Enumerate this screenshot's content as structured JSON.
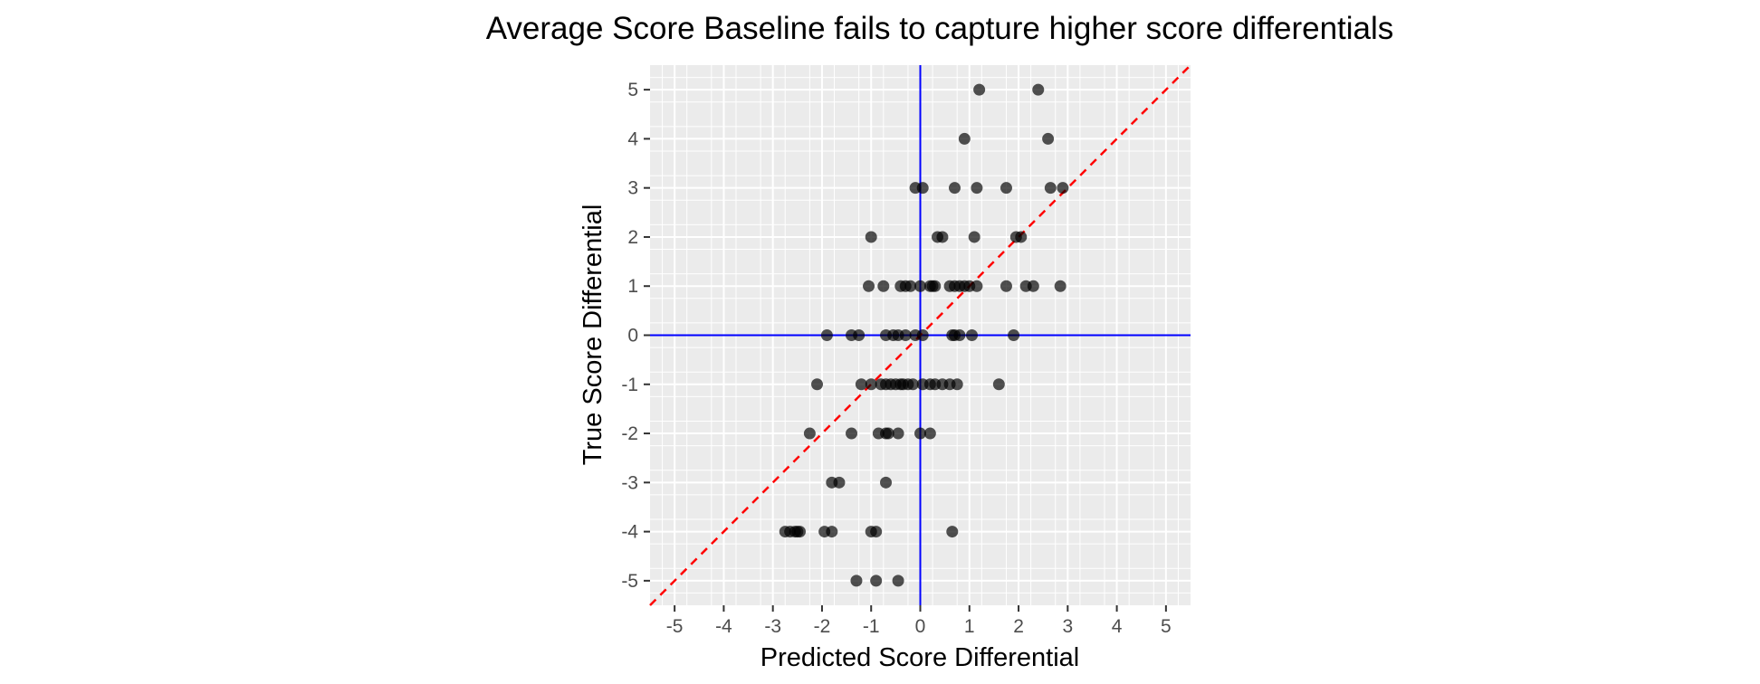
{
  "chart_data": {
    "type": "scatter",
    "title": "Average Score Baseline fails to capture higher score differentials",
    "xlabel": "Predicted Score Differential",
    "ylabel": "True Score Differential",
    "xlim": [
      -5.5,
      5.5
    ],
    "ylim": [
      -5.5,
      5.5
    ],
    "x_ticks": [
      -5,
      -4,
      -3,
      -2,
      -1,
      0,
      1,
      2,
      3,
      4,
      5
    ],
    "y_ticks": [
      -5,
      -4,
      -3,
      -2,
      -1,
      0,
      1,
      2,
      3,
      4,
      5
    ],
    "x_tick_labels": [
      "-5",
      "-4",
      "-3",
      "-2",
      "-1",
      "0",
      "1",
      "2",
      "3",
      "4",
      "5"
    ],
    "y_tick_labels": [
      "-5",
      "-4",
      "-3",
      "-2",
      "-1",
      "0",
      "1",
      "2",
      "3",
      "4",
      "5"
    ],
    "grid": true,
    "reference_lines": [
      {
        "kind": "vertical",
        "x": 0,
        "color": "#0000ff",
        "style": "solid"
      },
      {
        "kind": "horizontal",
        "y": 0,
        "color": "#0000ff",
        "style": "solid"
      },
      {
        "kind": "diagonal",
        "slope": 1,
        "intercept": 0,
        "color": "#ff0000",
        "style": "dashed"
      }
    ],
    "colors": {
      "panel_background": "#ebebeb",
      "grid": "#ffffff",
      "points": "#000000",
      "tick_text": "#4d4d4d"
    },
    "points": [
      {
        "x": 1.2,
        "y": 5
      },
      {
        "x": 2.4,
        "y": 5
      },
      {
        "x": 0.9,
        "y": 4
      },
      {
        "x": 2.6,
        "y": 4
      },
      {
        "x": -0.1,
        "y": 3
      },
      {
        "x": 0.05,
        "y": 3
      },
      {
        "x": 0.7,
        "y": 3
      },
      {
        "x": 1.15,
        "y": 3
      },
      {
        "x": 1.75,
        "y": 3
      },
      {
        "x": 2.65,
        "y": 3
      },
      {
        "x": 2.9,
        "y": 3
      },
      {
        "x": -1.0,
        "y": 2
      },
      {
        "x": 0.35,
        "y": 2
      },
      {
        "x": 0.45,
        "y": 2
      },
      {
        "x": 1.1,
        "y": 2
      },
      {
        "x": 1.95,
        "y": 2
      },
      {
        "x": 2.05,
        "y": 2
      },
      {
        "x": -1.05,
        "y": 1
      },
      {
        "x": -0.75,
        "y": 1
      },
      {
        "x": -0.4,
        "y": 1
      },
      {
        "x": -0.3,
        "y": 1
      },
      {
        "x": -0.2,
        "y": 1
      },
      {
        "x": 0.0,
        "y": 1
      },
      {
        "x": 0.2,
        "y": 1
      },
      {
        "x": 0.25,
        "y": 1
      },
      {
        "x": 0.3,
        "y": 1
      },
      {
        "x": 0.6,
        "y": 1
      },
      {
        "x": 0.7,
        "y": 1
      },
      {
        "x": 0.8,
        "y": 1
      },
      {
        "x": 0.9,
        "y": 1
      },
      {
        "x": 1.0,
        "y": 1
      },
      {
        "x": 1.15,
        "y": 1
      },
      {
        "x": 1.75,
        "y": 1
      },
      {
        "x": 2.15,
        "y": 1
      },
      {
        "x": 2.3,
        "y": 1
      },
      {
        "x": 2.85,
        "y": 1
      },
      {
        "x": -1.9,
        "y": 0
      },
      {
        "x": -1.4,
        "y": 0
      },
      {
        "x": -1.25,
        "y": 0
      },
      {
        "x": -0.7,
        "y": 0
      },
      {
        "x": -0.55,
        "y": 0
      },
      {
        "x": -0.45,
        "y": 0
      },
      {
        "x": -0.3,
        "y": 0
      },
      {
        "x": -0.1,
        "y": 0
      },
      {
        "x": 0.05,
        "y": 0
      },
      {
        "x": 0.65,
        "y": 0
      },
      {
        "x": 0.7,
        "y": 0
      },
      {
        "x": 0.8,
        "y": 0
      },
      {
        "x": 1.05,
        "y": 0
      },
      {
        "x": 1.9,
        "y": 0
      },
      {
        "x": -2.1,
        "y": -1
      },
      {
        "x": -1.2,
        "y": -1
      },
      {
        "x": -1.0,
        "y": -1
      },
      {
        "x": -0.8,
        "y": -1
      },
      {
        "x": -0.7,
        "y": -1
      },
      {
        "x": -0.6,
        "y": -1
      },
      {
        "x": -0.5,
        "y": -1
      },
      {
        "x": -0.4,
        "y": -1
      },
      {
        "x": -0.35,
        "y": -1
      },
      {
        "x": -0.25,
        "y": -1
      },
      {
        "x": -0.15,
        "y": -1
      },
      {
        "x": 0.05,
        "y": -1
      },
      {
        "x": 0.2,
        "y": -1
      },
      {
        "x": 0.3,
        "y": -1
      },
      {
        "x": 0.45,
        "y": -1
      },
      {
        "x": 0.6,
        "y": -1
      },
      {
        "x": 0.75,
        "y": -1
      },
      {
        "x": 1.6,
        "y": -1
      },
      {
        "x": -2.25,
        "y": -2
      },
      {
        "x": -1.4,
        "y": -2
      },
      {
        "x": -0.85,
        "y": -2
      },
      {
        "x": -0.7,
        "y": -2
      },
      {
        "x": -0.65,
        "y": -2
      },
      {
        "x": -0.45,
        "y": -2
      },
      {
        "x": 0.0,
        "y": -2
      },
      {
        "x": 0.2,
        "y": -2
      },
      {
        "x": -1.8,
        "y": -3
      },
      {
        "x": -1.65,
        "y": -3
      },
      {
        "x": -0.7,
        "y": -3
      },
      {
        "x": -2.75,
        "y": -4
      },
      {
        "x": -2.65,
        "y": -4
      },
      {
        "x": -2.55,
        "y": -4
      },
      {
        "x": -2.5,
        "y": -4
      },
      {
        "x": -2.45,
        "y": -4
      },
      {
        "x": -1.95,
        "y": -4
      },
      {
        "x": -1.8,
        "y": -4
      },
      {
        "x": -1.0,
        "y": -4
      },
      {
        "x": -0.9,
        "y": -4
      },
      {
        "x": 0.65,
        "y": -4
      },
      {
        "x": -1.3,
        "y": -5
      },
      {
        "x": -0.9,
        "y": -5
      },
      {
        "x": -0.45,
        "y": -5
      }
    ]
  }
}
